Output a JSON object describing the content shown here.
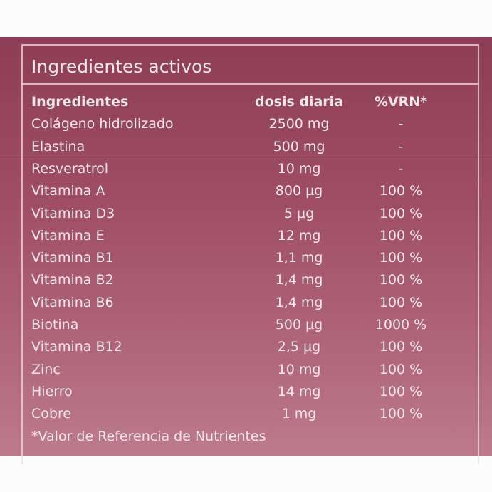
{
  "panel": {
    "title": "Ingredientes activos",
    "table": {
      "header": [
        "Ingredientes",
        "dosis diaria",
        "%VRN*"
      ],
      "rows": [
        [
          "Colágeno hidrolizado",
          "2500 mg",
          "-"
        ],
        [
          "Elastina",
          "500 mg",
          "-"
        ],
        [
          "Resveratrol",
          "10 mg",
          "-"
        ],
        [
          "Vitamina A",
          "800 µg",
          "100 %"
        ],
        [
          "Vitamina D3",
          "5 µg",
          "100 %"
        ],
        [
          "Vitamina E",
          "12 mg",
          "100 %"
        ],
        [
          "Vitamina B1",
          "1,1 mg",
          "100 %"
        ],
        [
          "Vitamina B2",
          "1,4 mg",
          "100 %"
        ],
        [
          "Vitamina B6",
          "1,4 mg",
          "100 %"
        ],
        [
          "Biotina",
          "500 µg",
          "1000 %"
        ],
        [
          "Vitamina B12",
          "2,5 µg",
          "100 %"
        ],
        [
          "Zinc",
          "10 mg",
          "100 %"
        ],
        [
          "Hierro",
          "14 mg",
          "100 %"
        ],
        [
          "Cobre",
          "1 mg",
          "100 %"
        ]
      ]
    },
    "footnote": "*Valor de Referencia de Nutrientes"
  }
}
